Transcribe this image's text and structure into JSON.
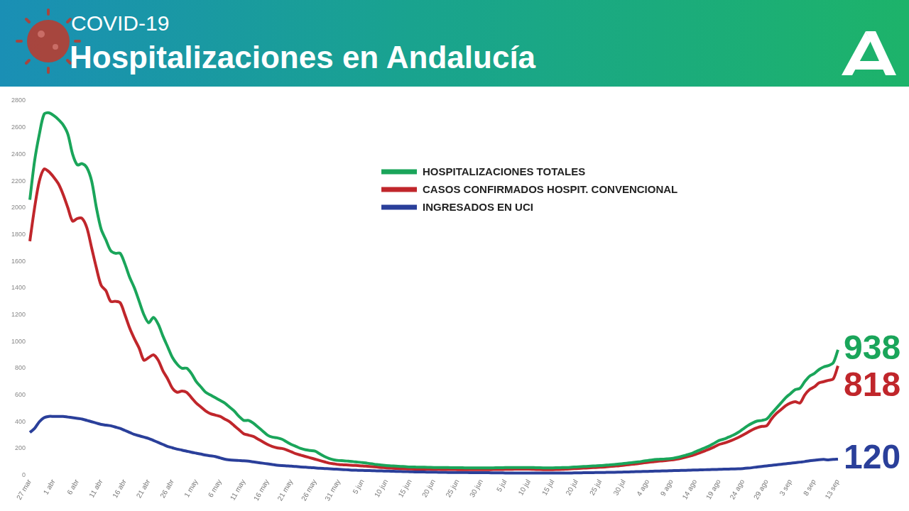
{
  "chart_data": {
    "type": "line",
    "title": "Hospitalizaciones en Andalucía",
    "subtitle": "COVID-19",
    "legend": "center",
    "grid": false,
    "categories": [
      "27 mar",
      null,
      null,
      null,
      null,
      "1 abr",
      null,
      null,
      null,
      null,
      "6 abr",
      null,
      null,
      null,
      null,
      "11 abr",
      null,
      null,
      null,
      null,
      "16 abr",
      null,
      null,
      null,
      null,
      "21 abr",
      null,
      null,
      null,
      null,
      "26 abr",
      null,
      null,
      null,
      null,
      "1 may",
      null,
      null,
      null,
      null,
      "6 may",
      null,
      null,
      null,
      null,
      "11 may",
      null,
      null,
      null,
      null,
      "16 may",
      null,
      null,
      null,
      null,
      "21 may",
      null,
      null,
      null,
      null,
      "26 may",
      null,
      null,
      null,
      null,
      "31 may",
      null,
      null,
      null,
      null,
      "5 jun",
      null,
      null,
      null,
      null,
      "10 jun",
      null,
      null,
      null,
      null,
      "15 jun",
      null,
      null,
      null,
      null,
      "20 jun",
      null,
      null,
      null,
      null,
      "25 jun",
      null,
      null,
      null,
      null,
      "30 jun",
      null,
      null,
      null,
      null,
      "5 jul",
      null,
      null,
      null,
      null,
      "10 jul",
      null,
      null,
      null,
      null,
      "15 jul",
      null,
      null,
      null,
      null,
      "20 jul",
      null,
      null,
      null,
      null,
      "25 jul",
      null,
      null,
      null,
      null,
      "30 jul",
      null,
      null,
      null,
      null,
      "4 ago",
      null,
      null,
      null,
      null,
      "9 ago",
      null,
      null,
      null,
      null,
      "14 ago",
      null,
      null,
      null,
      null,
      "19 ago",
      null,
      null,
      null,
      null,
      "24 ago",
      null,
      null,
      null,
      null,
      "29 ago",
      null,
      null,
      null,
      null,
      "3 sep",
      null,
      null,
      null,
      null,
      "8 sep",
      null,
      null,
      null,
      null,
      "13 sep"
    ],
    "series": [
      {
        "name": "HOSPITALIZACIONES TOTALES",
        "color": "#1aa55a",
        "values": [
          2060,
          2350,
          2550,
          2700,
          2710,
          2690,
          2660,
          2620,
          2550,
          2400,
          2320,
          2330,
          2300,
          2200,
          2000,
          1840,
          1760,
          1680,
          1660,
          1660,
          1580,
          1480,
          1400,
          1300,
          1200,
          1140,
          1180,
          1130,
          1040,
          960,
          880,
          830,
          800,
          800,
          760,
          700,
          660,
          620,
          600,
          580,
          560,
          540,
          510,
          480,
          440,
          410,
          410,
          390,
          360,
          330,
          300,
          285,
          280,
          270,
          250,
          230,
          215,
          200,
          190,
          185,
          180,
          160,
          140,
          125,
          115,
          110,
          108,
          105,
          102,
          98,
          95,
          90,
          85,
          80,
          76,
          72,
          70,
          68,
          66,
          64,
          62,
          61,
          60,
          60,
          59,
          58,
          58,
          57,
          57,
          56,
          56,
          56,
          55,
          55,
          55,
          55,
          55,
          55,
          56,
          56,
          57,
          57,
          58,
          58,
          58,
          58,
          57,
          56,
          55,
          55,
          55,
          56,
          57,
          58,
          60,
          62,
          64,
          66,
          68,
          70,
          72,
          75,
          78,
          80,
          84,
          88,
          92,
          96,
          100,
          105,
          110,
          115,
          118,
          120,
          122,
          125,
          132,
          140,
          150,
          160,
          175,
          190,
          205,
          220,
          240,
          260,
          270,
          285,
          300,
          320,
          345,
          370,
          390,
          405,
          410,
          420,
          460,
          500,
          540,
          580,
          610,
          640,
          650,
          700,
          740,
          760,
          790,
          810,
          820,
          840,
          938
        ]
      },
      {
        "name": "CASOS CONFIRMADOS HOSPIT. CONVENCIONAL",
        "color": "#c0262b",
        "values": [
          1750,
          2000,
          2200,
          2290,
          2270,
          2230,
          2180,
          2100,
          2000,
          1900,
          1920,
          1920,
          1850,
          1700,
          1550,
          1420,
          1380,
          1300,
          1300,
          1290,
          1200,
          1100,
          1020,
          950,
          860,
          880,
          900,
          860,
          780,
          720,
          650,
          620,
          630,
          620,
          580,
          540,
          510,
          480,
          460,
          450,
          440,
          420,
          400,
          370,
          340,
          310,
          300,
          290,
          270,
          250,
          230,
          215,
          205,
          200,
          190,
          175,
          160,
          150,
          140,
          130,
          120,
          110,
          100,
          90,
          85,
          80,
          78,
          76,
          74,
          72,
          70,
          67,
          64,
          61,
          58,
          55,
          53,
          51,
          49,
          48,
          47,
          46,
          46,
          45,
          45,
          44,
          44,
          43,
          43,
          43,
          42,
          42,
          42,
          42,
          42,
          42,
          42,
          42,
          43,
          43,
          44,
          44,
          45,
          45,
          45,
          45,
          44,
          43,
          42,
          42,
          42,
          43,
          44,
          46,
          48,
          50,
          52,
          54,
          56,
          58,
          60,
          62,
          65,
          68,
          71,
          75,
          79,
          83,
          87,
          92,
          96,
          100,
          104,
          107,
          110,
          114,
          120,
          127,
          135,
          145,
          155,
          168,
          182,
          196,
          212,
          230,
          240,
          252,
          266,
          282,
          300,
          320,
          340,
          355,
          365,
          370,
          420,
          460,
          490,
          520,
          540,
          550,
          540,
          600,
          640,
          660,
          690,
          700,
          710,
          720,
          818
        ]
      },
      {
        "name": "INGRESADOS EN UCI",
        "color": "#2a3f9a",
        "values": [
          320,
          350,
          400,
          430,
          440,
          440,
          440,
          440,
          435,
          430,
          425,
          420,
          410,
          400,
          390,
          380,
          375,
          370,
          360,
          350,
          335,
          320,
          305,
          295,
          285,
          275,
          260,
          245,
          230,
          215,
          205,
          195,
          188,
          180,
          172,
          165,
          158,
          150,
          145,
          140,
          130,
          120,
          115,
          112,
          110,
          108,
          105,
          100,
          95,
          90,
          85,
          80,
          75,
          72,
          70,
          68,
          65,
          62,
          60,
          58,
          55,
          52,
          50,
          48,
          46,
          44,
          42,
          40,
          38,
          37,
          36,
          35,
          34,
          33,
          32,
          31,
          30,
          29,
          28,
          27,
          26,
          25,
          24,
          24,
          23,
          23,
          22,
          22,
          21,
          21,
          20,
          20,
          20,
          19,
          19,
          19,
          19,
          18,
          18,
          18,
          17,
          17,
          17,
          17,
          16,
          16,
          16,
          16,
          16,
          16,
          16,
          16,
          17,
          17,
          17,
          18,
          18,
          19,
          19,
          20,
          20,
          21,
          22,
          22,
          23,
          24,
          25,
          26,
          27,
          28,
          29,
          30,
          31,
          32,
          33,
          34,
          35,
          36,
          37,
          38,
          39,
          40,
          41,
          42,
          43,
          44,
          45,
          46,
          47,
          48,
          50,
          53,
          57,
          62,
          66,
          70,
          74,
          78,
          82,
          86,
          90,
          94,
          98,
          102,
          108,
          112,
          116,
          118,
          115,
          118,
          120
        ]
      }
    ],
    "annotations": [
      {
        "text": "938",
        "series": "HOSPITALIZACIONES TOTALES"
      },
      {
        "text": "818",
        "series": "CASOS CONFIRMADOS HOSPIT. CONVENCIONAL"
      },
      {
        "text": "120",
        "series": "INGRESADOS EN UCI"
      }
    ],
    "ylim": [
      0,
      2800
    ],
    "yticks": [
      0,
      200,
      400,
      600,
      800,
      1000,
      1200,
      1400,
      1600,
      1800,
      2000,
      2200,
      2400,
      2600,
      2800
    ]
  }
}
